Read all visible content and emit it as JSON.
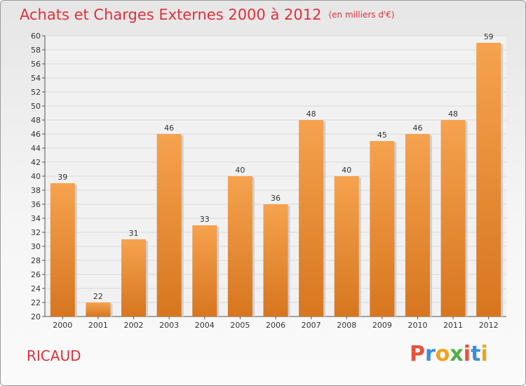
{
  "header": {
    "title": "Achats et Charges Externes 2000 à 2012",
    "unit": "(en milliers d'€)"
  },
  "footer": {
    "commune": "RICAUD",
    "brand": "Proxiti"
  },
  "colors": {
    "title": "#e0303a",
    "bar_light": "#f6a24e",
    "bar_dark": "#d7761f",
    "brand_letters": [
      "#e8513a",
      "#3b8fd6",
      "#f0a21e",
      "#4fae45",
      "#e8513a",
      "#3b8fd6",
      "#f0a21e"
    ]
  },
  "chart_data": {
    "type": "bar",
    "title": "Achats et Charges Externes 2000 à 2012",
    "subtitle": "(en milliers d'€)",
    "categories": [
      "2000",
      "2001",
      "2002",
      "2003",
      "2004",
      "2005",
      "2006",
      "2007",
      "2008",
      "2009",
      "2010",
      "2011",
      "2012"
    ],
    "values": [
      39,
      22,
      31,
      46,
      33,
      40,
      36,
      48,
      40,
      45,
      46,
      48,
      59
    ],
    "ylim": [
      20,
      60
    ],
    "yticks": [
      20,
      22,
      24,
      26,
      28,
      30,
      32,
      34,
      36,
      38,
      40,
      42,
      44,
      46,
      48,
      50,
      52,
      54,
      56,
      58,
      60
    ],
    "grid": true,
    "legend": "none",
    "xlabel": "",
    "ylabel": ""
  }
}
